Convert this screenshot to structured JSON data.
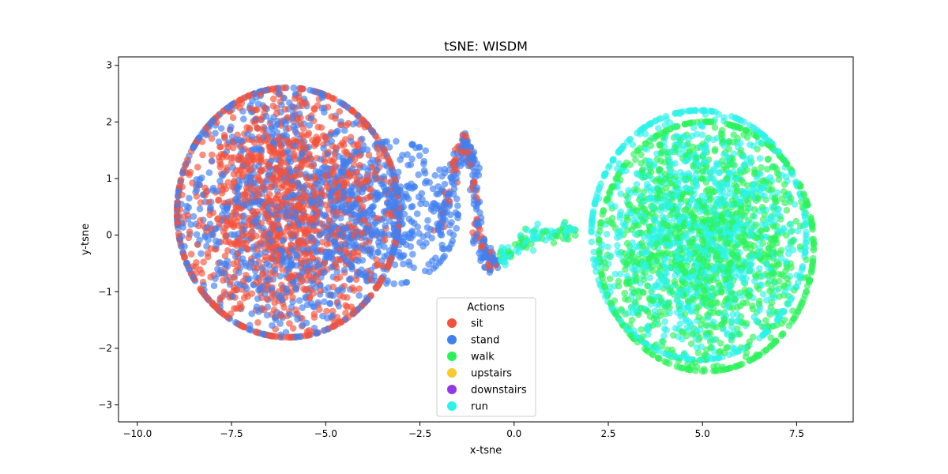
{
  "chart_data": {
    "type": "scatter",
    "title": "tSNE: WISDM",
    "xlabel": "x-tsne",
    "ylabel": "y-tsne",
    "xlim": [
      -10.5,
      9.0
    ],
    "ylim": [
      -3.3,
      3.15
    ],
    "x_ticks": [
      -10.0,
      -7.5,
      -5.0,
      -2.5,
      0.0,
      2.5,
      5.0,
      7.5
    ],
    "x_tick_labels": [
      "−10.0",
      "−7.5",
      "−5.0",
      "−2.5",
      "0.0",
      "2.5",
      "5.0",
      "7.5"
    ],
    "y_ticks": [
      -3,
      -2,
      -1,
      0,
      1,
      2,
      3
    ],
    "y_tick_labels": [
      "−3",
      "−2",
      "−1",
      "0",
      "1",
      "2",
      "3"
    ],
    "grid": false,
    "legend": {
      "title": "Actions",
      "placement": "lower-center",
      "entries": [
        {
          "name": "sit",
          "color": "#f4523b"
        },
        {
          "name": "stand",
          "color": "#3f7ff2"
        },
        {
          "name": "walk",
          "color": "#2cf25a"
        },
        {
          "name": "upstairs",
          "color": "#f7cb2c"
        },
        {
          "name": "downstairs",
          "color": "#9437eb"
        },
        {
          "name": "run",
          "color": "#2cf2ea"
        }
      ]
    },
    "clusters": [
      {
        "series": "sit",
        "center": [
          -6.0,
          0.4
        ],
        "spread": [
          1.55,
          1.05
        ],
        "count": 1400
      },
      {
        "series": "stand",
        "center": [
          -6.0,
          0.4
        ],
        "spread": [
          1.55,
          1.05
        ],
        "count": 1100
      },
      {
        "series": "stand",
        "center": [
          -3.2,
          0.4
        ],
        "spread": [
          0.9,
          0.6
        ],
        "count": 350
      },
      {
        "series": "walk",
        "center": [
          5.1,
          -0.2
        ],
        "spread": [
          1.5,
          1.05
        ],
        "count": 1300
      },
      {
        "series": "run",
        "center": [
          4.9,
          0.0
        ],
        "spread": [
          1.5,
          1.05
        ],
        "count": 1200
      }
    ],
    "bridge": [
      [
        -2.0,
        0.0
      ],
      [
        -1.6,
        1.2
      ],
      [
        -1.3,
        1.7
      ],
      [
        -1.05,
        1.2
      ],
      [
        -0.95,
        0.0
      ],
      [
        -0.7,
        -0.5
      ],
      [
        -0.2,
        -0.35
      ],
      [
        0.6,
        0.0
      ],
      [
        1.6,
        0.05
      ]
    ]
  }
}
